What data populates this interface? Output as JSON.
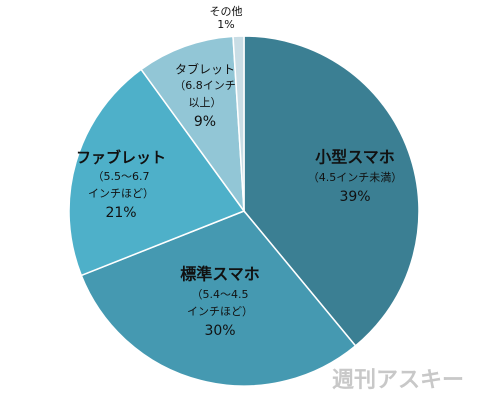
{
  "chart_data": {
    "type": "pie",
    "categories": [
      "小型スマホ",
      "標準スマホ",
      "ファブレット",
      "タブレット",
      "その他"
    ],
    "notes": [
      [
        "（4.5インチ未満）"
      ],
      [
        "（5.4～4.5",
        "インチほど）"
      ],
      [
        "（5.5～6.7",
        "インチほど）"
      ],
      [
        "（6.8インチ",
        "以上）"
      ],
      null
    ],
    "values": [
      39,
      30,
      21,
      9,
      1
    ],
    "value_labels": [
      "39%",
      "30%",
      "21%",
      "9%",
      "1%"
    ],
    "colors": [
      "#3b7f93",
      "#4599b1",
      "#4eb0c9",
      "#92c6d6",
      "#c9dde5"
    ],
    "watermark": "週刊アスキー"
  }
}
